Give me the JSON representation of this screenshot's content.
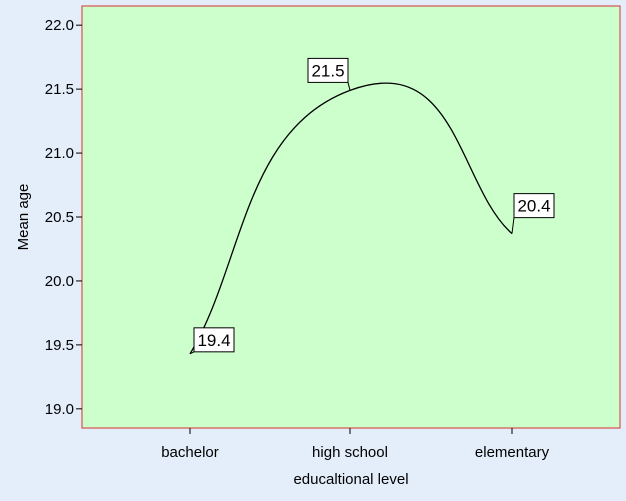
{
  "chart_data": {
    "type": "line",
    "title": "",
    "xlabel": "educaltional level",
    "ylabel": "Mean age",
    "categories": [
      "bachelor",
      "high school",
      "elementary"
    ],
    "series": [
      {
        "values": [
          19.43,
          21.49,
          20.37
        ]
      }
    ],
    "data_labels": [
      "19.4",
      "21.5",
      "20.4"
    ],
    "ylim": [
      18.85,
      22.15
    ],
    "yticks": [
      19.0,
      19.5,
      20.0,
      20.5,
      21.0,
      21.5,
      22.0
    ],
    "ytick_labels": [
      "19.0",
      "19.5",
      "20.0",
      "20.5",
      "21.0",
      "21.5",
      "22.0"
    ],
    "grid": false,
    "legend": "none",
    "smooth": true,
    "colors": {
      "page_background": "#e3eefa",
      "plot_background": "#ccffcc",
      "plot_border": "#d9534f",
      "line": "#000000"
    }
  }
}
